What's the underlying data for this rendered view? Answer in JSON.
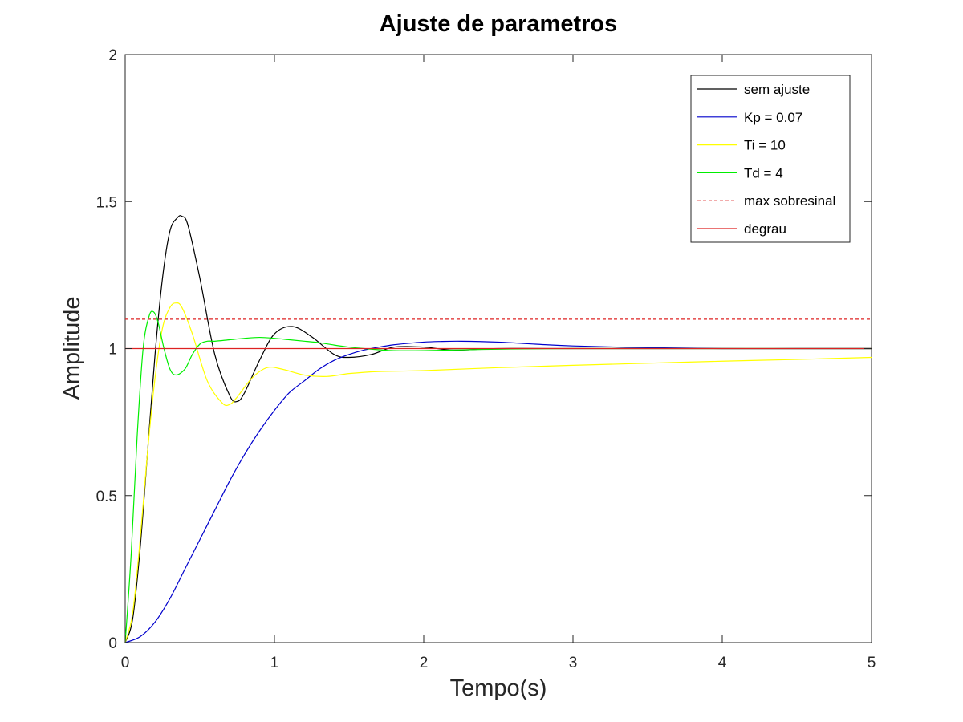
{
  "chart_data": {
    "type": "line",
    "title": "Ajuste de parametros",
    "xlabel": "Tempo(s)",
    "ylabel": "Amplitude",
    "xlim": [
      0,
      5
    ],
    "ylim": [
      0,
      2
    ],
    "xticks": [
      0,
      1,
      2,
      3,
      4,
      5
    ],
    "yticks": [
      0,
      0.5,
      1,
      1.5,
      2
    ],
    "xtick_labels": [
      "0",
      "1",
      "2",
      "3",
      "4",
      "5"
    ],
    "ytick_labels": [
      "0",
      "0.5",
      "1",
      "1.5",
      "2"
    ],
    "grid": false,
    "legend_position": "top-right",
    "series": [
      {
        "name": "sem ajuste",
        "color": "#000000",
        "style": "solid",
        "x": [
          0,
          0.05,
          0.1,
          0.15,
          0.2,
          0.25,
          0.3,
          0.35,
          0.38,
          0.42,
          0.5,
          0.6,
          0.7,
          0.75,
          0.8,
          0.9,
          1.0,
          1.12,
          1.25,
          1.4,
          1.5,
          1.65,
          1.8,
          2.0,
          2.2,
          2.5,
          3.0,
          3.5,
          4.0,
          4.5,
          5.0
        ],
        "y": [
          0,
          0.08,
          0.32,
          0.65,
          0.98,
          1.24,
          1.4,
          1.445,
          1.45,
          1.42,
          1.24,
          0.98,
          0.84,
          0.82,
          0.85,
          0.96,
          1.05,
          1.075,
          1.04,
          0.98,
          0.97,
          0.98,
          1.005,
          1.005,
          0.995,
          1.0,
          1.0,
          1.0,
          1.0,
          1.0,
          1.0
        ]
      },
      {
        "name": "Kp = 0.07",
        "color": "#0000cc",
        "style": "solid",
        "x": [
          0,
          0.1,
          0.2,
          0.3,
          0.4,
          0.5,
          0.6,
          0.7,
          0.8,
          0.9,
          1.0,
          1.1,
          1.2,
          1.3,
          1.4,
          1.5,
          1.6,
          1.7,
          1.8,
          1.9,
          2.0,
          2.1,
          2.25,
          2.5,
          2.75,
          3.0,
          3.5,
          4.0,
          4.5,
          5.0
        ],
        "y": [
          0,
          0.02,
          0.07,
          0.15,
          0.25,
          0.35,
          0.45,
          0.55,
          0.64,
          0.72,
          0.79,
          0.85,
          0.89,
          0.93,
          0.96,
          0.98,
          0.995,
          1.005,
          1.013,
          1.018,
          1.022,
          1.024,
          1.025,
          1.022,
          1.015,
          1.009,
          1.003,
          1.0,
          1.0,
          1.0
        ]
      },
      {
        "name": "Ti = 10",
        "color": "#ffff00",
        "style": "solid",
        "x": [
          0,
          0.05,
          0.1,
          0.15,
          0.2,
          0.25,
          0.3,
          0.34,
          0.38,
          0.45,
          0.55,
          0.65,
          0.7,
          0.75,
          0.85,
          0.95,
          1.05,
          1.2,
          1.35,
          1.5,
          1.7,
          2.0,
          2.5,
          3.0,
          3.5,
          4.0,
          4.5,
          5.0
        ],
        "y": [
          0,
          0.1,
          0.35,
          0.65,
          0.9,
          1.07,
          1.14,
          1.155,
          1.14,
          1.05,
          0.89,
          0.815,
          0.81,
          0.835,
          0.9,
          0.935,
          0.93,
          0.91,
          0.905,
          0.915,
          0.922,
          0.925,
          0.935,
          0.943,
          0.95,
          0.957,
          0.963,
          0.97
        ]
      },
      {
        "name": "Td = 4",
        "color": "#00ee00",
        "style": "solid",
        "x": [
          0,
          0.04,
          0.08,
          0.12,
          0.16,
          0.19,
          0.22,
          0.26,
          0.3,
          0.34,
          0.4,
          0.45,
          0.5,
          0.55,
          0.6,
          0.7,
          0.8,
          0.9,
          1.0,
          1.1,
          1.2,
          1.3,
          1.4,
          1.5,
          1.6,
          1.7,
          1.8,
          2.0,
          2.2,
          2.5,
          3.0,
          4.0,
          5.0
        ],
        "y": [
          0,
          0.3,
          0.7,
          1.0,
          1.11,
          1.125,
          1.09,
          1.0,
          0.93,
          0.91,
          0.93,
          0.98,
          1.015,
          1.025,
          1.025,
          1.03,
          1.035,
          1.038,
          1.035,
          1.03,
          1.025,
          1.02,
          1.012,
          1.005,
          1.0,
          0.996,
          0.993,
          0.993,
          0.995,
          0.998,
          1.0,
          1.0,
          1.0
        ]
      },
      {
        "name": "max sobresinal",
        "color": "#dd2222",
        "style": "dashed",
        "x": [
          0,
          5
        ],
        "y": [
          1.1,
          1.1
        ]
      },
      {
        "name": "degrau",
        "color": "#dd2222",
        "style": "solid",
        "x": [
          0,
          5
        ],
        "y": [
          1.0,
          1.0
        ]
      }
    ]
  }
}
